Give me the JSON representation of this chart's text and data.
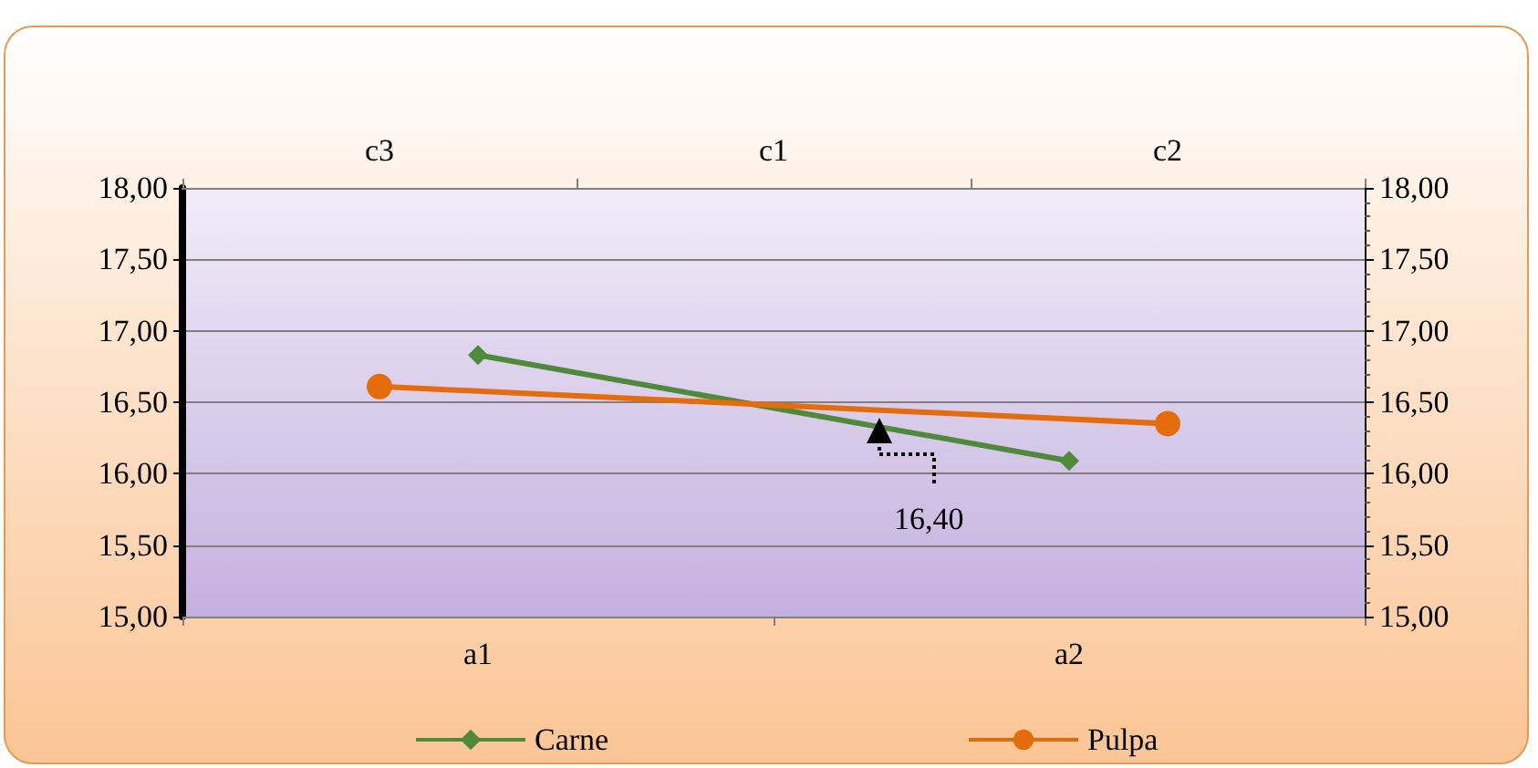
{
  "chart_data": [
    {
      "type": "line",
      "categories": [
        "a1",
        "a2"
      ],
      "series": [
        {
          "name": "Carne",
          "color": "#4f8a3c",
          "marker": "diamond",
          "values": [
            16.83,
            16.09
          ]
        }
      ],
      "ylim": [
        15,
        18
      ],
      "yticks": [
        {
          "value": 15,
          "label": "15,00"
        },
        {
          "value": 15.5,
          "label": "15,50"
        },
        {
          "value": 16,
          "label": "16,00"
        },
        {
          "value": 16.5,
          "label": "16,50"
        },
        {
          "value": 17,
          "label": "17,00"
        },
        {
          "value": 17.5,
          "label": "17,50"
        },
        {
          "value": 18,
          "label": "18,00"
        }
      ],
      "annotations": [
        "16,40"
      ],
      "grid": "y",
      "legend": "bottom"
    },
    {
      "type": "line",
      "categories": [
        "c3",
        "c1",
        "c2"
      ],
      "series": [
        {
          "name": "Pulpa",
          "color": "#e46c0a",
          "marker": "circle",
          "values": [
            16.61,
            null,
            16.35
          ]
        }
      ],
      "ylim": [
        15,
        18
      ],
      "yticks": [
        {
          "value": 15,
          "label": "15,00"
        },
        {
          "value": 15.5,
          "label": "15,50"
        },
        {
          "value": 16,
          "label": "16,00"
        },
        {
          "value": 16.5,
          "label": "16,50"
        },
        {
          "value": 17,
          "label": "17,00"
        },
        {
          "value": 17.5,
          "label": "17,50"
        },
        {
          "value": 18,
          "label": "18,00"
        }
      ],
      "legend": "bottom"
    }
  ]
}
